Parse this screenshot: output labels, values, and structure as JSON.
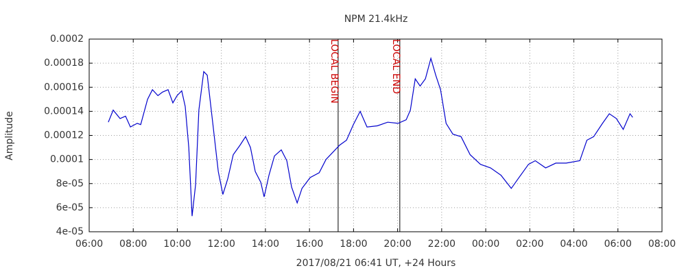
{
  "chart_data": {
    "type": "line",
    "title": "NPM 21.4kHz",
    "xlabel": "2017/08/21 06:41 UT, +24 Hours",
    "ylabel": "Amplitude",
    "grid": true,
    "xlim": [
      6,
      32
    ],
    "xticks": [
      {
        "value": 6,
        "label": "06:00"
      },
      {
        "value": 8,
        "label": "08:00"
      },
      {
        "value": 10,
        "label": "10:00"
      },
      {
        "value": 12,
        "label": "12:00"
      },
      {
        "value": 14,
        "label": "14:00"
      },
      {
        "value": 16,
        "label": "16:00"
      },
      {
        "value": 18,
        "label": "18:00"
      },
      {
        "value": 20,
        "label": "20:00"
      },
      {
        "value": 22,
        "label": "22:00"
      },
      {
        "value": 24,
        "label": "00:00"
      },
      {
        "value": 26,
        "label": "02:00"
      },
      {
        "value": 28,
        "label": "04:00"
      },
      {
        "value": 30,
        "label": "06:00"
      },
      {
        "value": 32,
        "label": "08:00"
      }
    ],
    "ylim": [
      4e-05,
      0.0002
    ],
    "yticks": [
      {
        "value": 4e-05,
        "label": "4e-05"
      },
      {
        "value": 6e-05,
        "label": "6e-05"
      },
      {
        "value": 8e-05,
        "label": "8e-05"
      },
      0.0001,
      0.00012,
      0.00014,
      0.00016,
      0.00018,
      0.0002
    ],
    "annotations": [
      {
        "x": 17.3,
        "label": "LOCAL BEGIN",
        "color": "#cc0000"
      },
      {
        "x": 20.1,
        "label": "LOCAL END",
        "color": "#cc0000"
      }
    ],
    "x": [
      6.87,
      7.09,
      7.4,
      7.65,
      7.87,
      8.18,
      8.34,
      8.65,
      8.87,
      9.12,
      9.33,
      9.58,
      9.8,
      9.99,
      10.2,
      10.36,
      10.52,
      10.67,
      10.83,
      10.98,
      11.2,
      11.36,
      11.61,
      11.86,
      12.07,
      12.29,
      12.54,
      12.85,
      13.1,
      13.32,
      13.54,
      13.79,
      13.94,
      14.16,
      14.41,
      14.72,
      14.97,
      15.19,
      15.44,
      15.66,
      16.03,
      16.44,
      16.75,
      17.06,
      17.37,
      17.68,
      17.99,
      18.3,
      18.61,
      19.08,
      19.55,
      20.02,
      20.39,
      20.58,
      20.8,
      21.02,
      21.26,
      21.51,
      21.73,
      21.95,
      22.2,
      22.51,
      22.88,
      23.29,
      23.76,
      24.22,
      24.69,
      25.16,
      25.47,
      25.94,
      26.25,
      26.72,
      27.18,
      27.65,
      28.27,
      28.59,
      28.9,
      29.3,
      29.61,
      29.93,
      30.24,
      30.55,
      30.67
    ],
    "series": [
      {
        "color": "#0000cc",
        "values": [
          0.000131,
          0.000141,
          0.000134,
          0.000136,
          0.000127,
          0.00013,
          0.000129,
          0.00015,
          0.000158,
          0.000153,
          0.000156,
          0.000158,
          0.000147,
          0.000153,
          0.000157,
          0.000144,
          0.00011,
          5.3e-05,
          7.9e-05,
          0.000141,
          0.000173,
          0.00017,
          0.00013,
          9e-05,
          7.1e-05,
          8.4e-05,
          0.000104,
          0.000112,
          0.000119,
          0.00011,
          9e-05,
          8.1e-05,
          6.9e-05,
          8.7e-05,
          0.000103,
          0.000108,
          9.9e-05,
          7.7e-05,
          6.4e-05,
          7.6e-05,
          8.5e-05,
          8.9e-05,
          0.0001,
          0.000106,
          0.000112,
          0.000116,
          0.000129,
          0.00014,
          0.000127,
          0.000128,
          0.000131,
          0.00013,
          0.000133,
          0.000141,
          0.000167,
          0.000161,
          0.000167,
          0.000184,
          0.00017,
          0.000158,
          0.00013,
          0.000121,
          0.000119,
          0.000104,
          9.6e-05,
          9.3e-05,
          8.7e-05,
          7.6e-05,
          8.4e-05,
          9.6e-05,
          9.9e-05,
          9.3e-05,
          9.7e-05,
          9.7e-05,
          9.9e-05,
          0.000116,
          0.000119,
          0.00013,
          0.000138,
          0.000134,
          0.000125,
          0.000138,
          0.000135
        ]
      }
    ]
  }
}
